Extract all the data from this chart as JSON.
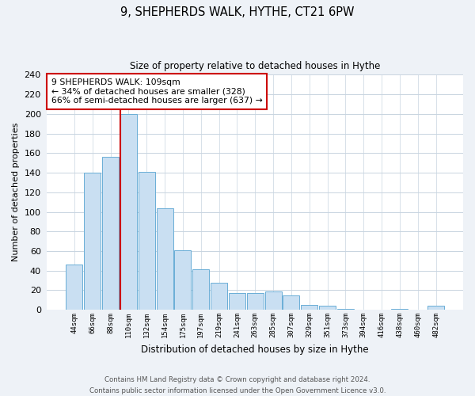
{
  "title": "9, SHEPHERDS WALK, HYTHE, CT21 6PW",
  "subtitle": "Size of property relative to detached houses in Hythe",
  "xlabel": "Distribution of detached houses by size in Hythe",
  "ylabel": "Number of detached properties",
  "bar_labels": [
    "44sqm",
    "66sqm",
    "88sqm",
    "110sqm",
    "132sqm",
    "154sqm",
    "175sqm",
    "197sqm",
    "219sqm",
    "241sqm",
    "263sqm",
    "285sqm",
    "307sqm",
    "329sqm",
    "351sqm",
    "373sqm",
    "394sqm",
    "416sqm",
    "438sqm",
    "460sqm",
    "482sqm"
  ],
  "bar_values": [
    46,
    140,
    156,
    200,
    141,
    104,
    61,
    41,
    28,
    17,
    17,
    19,
    15,
    5,
    4,
    1,
    0,
    0,
    1,
    0,
    4
  ],
  "bar_color": "#c9dff2",
  "bar_edge_color": "#6aaed6",
  "vline_color": "#cc0000",
  "vline_idx": 3,
  "annotation_title": "9 SHEPHERDS WALK: 109sqm",
  "annotation_line1": "← 34% of detached houses are smaller (328)",
  "annotation_line2": "66% of semi-detached houses are larger (637) →",
  "box_edge_color": "#cc0000",
  "ylim": [
    0,
    240
  ],
  "yticks": [
    0,
    20,
    40,
    60,
    80,
    100,
    120,
    140,
    160,
    180,
    200,
    220,
    240
  ],
  "footer_line1": "Contains HM Land Registry data © Crown copyright and database right 2024.",
  "footer_line2": "Contains public sector information licensed under the Open Government Licence v3.0.",
  "bg_color": "#eef2f7",
  "plot_bg_color": "#ffffff",
  "grid_color": "#c8d4e0"
}
